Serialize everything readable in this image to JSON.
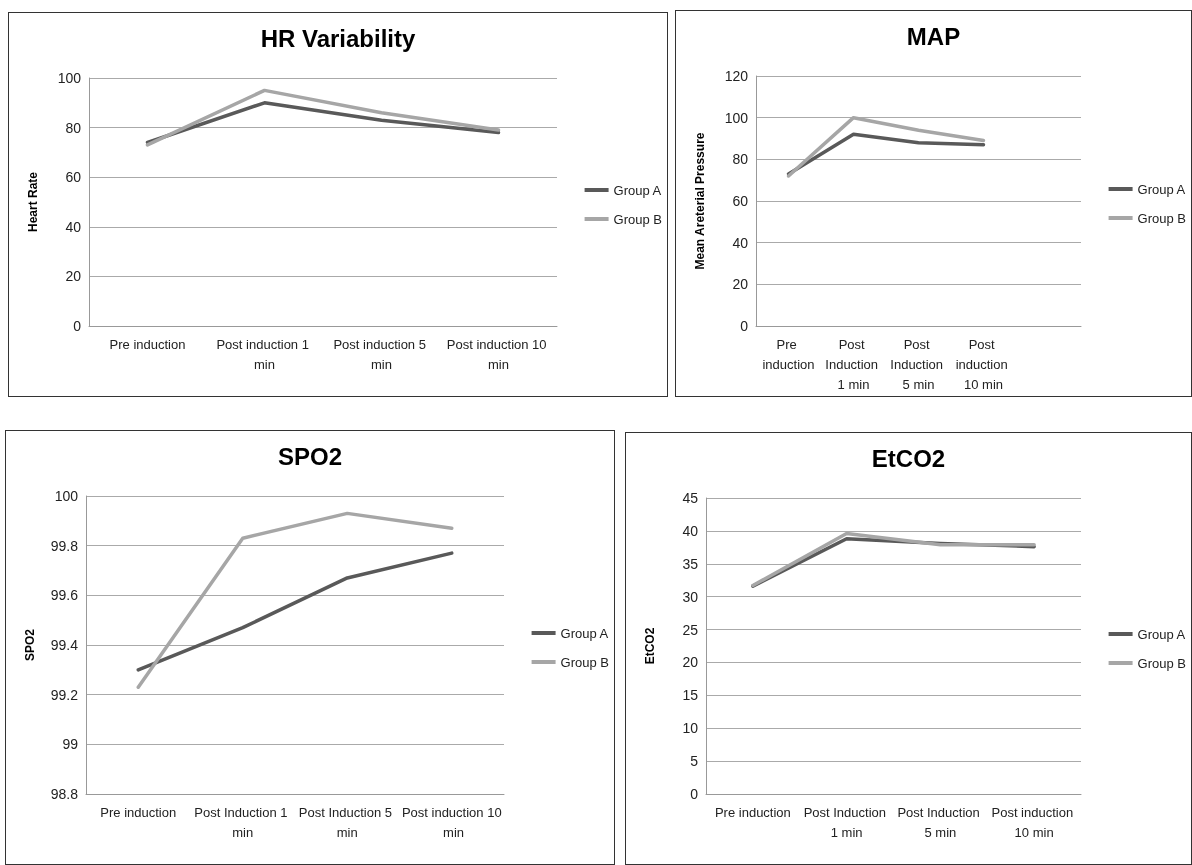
{
  "chart_data": [
    {
      "type": "line",
      "title": "HR Variability",
      "ylabel": "Heart Rate",
      "categories": [
        "Pre induction",
        "Post induction 1 min",
        "Post induction 5 min",
        "Post induction 10 min"
      ],
      "ylim": [
        0,
        100
      ],
      "yticks": [
        0,
        20,
        40,
        60,
        80,
        100
      ],
      "grid": "y",
      "legend": "right",
      "marker": "none",
      "line_style": "solid",
      "series": [
        {
          "name": "Group A",
          "color": "#595959",
          "values": [
            74,
            90,
            83,
            78
          ]
        },
        {
          "name": "Group B",
          "color": "#a6a6a6",
          "values": [
            73,
            95,
            86,
            79
          ]
        }
      ]
    },
    {
      "type": "line",
      "title": "MAP",
      "ylabel": "Mean Areterial Pressure",
      "categories": [
        "Pre induction",
        "Post Induction 1 min",
        "Post Induction 5 min",
        "Post induction 10 min",
        null
      ],
      "ylim": [
        0,
        120
      ],
      "yticks": [
        0,
        20,
        40,
        60,
        80,
        100,
        120
      ],
      "grid": "y",
      "legend": "right",
      "marker": "none",
      "line_style": "solid",
      "series": [
        {
          "name": "Group A",
          "color": "#595959",
          "values": [
            73,
            92,
            88,
            87,
            null
          ]
        },
        {
          "name": "Group B",
          "color": "#a6a6a6",
          "values": [
            72,
            100,
            94,
            89,
            null
          ]
        }
      ]
    },
    {
      "type": "line",
      "title": "SPO2",
      "ylabel": "SPO2",
      "categories": [
        "Pre induction",
        "Post Induction 1 min",
        "Post Induction 5 min",
        "Post induction 10 min"
      ],
      "ylim": [
        98.8,
        100
      ],
      "yticks": [
        98.8,
        99,
        99.2,
        99.4,
        99.6,
        99.8,
        100
      ],
      "grid": "y",
      "legend": "right",
      "marker": "none",
      "line_style": "solid",
      "series": [
        {
          "name": "Group A",
          "color": "#595959",
          "values": [
            99.3,
            99.47,
            99.67,
            99.77
          ]
        },
        {
          "name": "Group B",
          "color": "#a6a6a6",
          "values": [
            99.23,
            99.83,
            99.93,
            99.87
          ]
        }
      ]
    },
    {
      "type": "line",
      "title": "EtCO2",
      "ylabel": "EtCO2",
      "categories": [
        "Pre induction",
        "Post Induction 1 min",
        "Post Induction 5 min",
        "Post induction 10 min"
      ],
      "ylim": [
        0,
        45
      ],
      "yticks": [
        0,
        5,
        10,
        15,
        20,
        25,
        30,
        35,
        40,
        45
      ],
      "grid": "y",
      "legend": "right",
      "marker": "none",
      "line_style": "solid",
      "series": [
        {
          "name": "Group A",
          "color": "#595959",
          "values": [
            31.6,
            38.8,
            38.1,
            37.6
          ]
        },
        {
          "name": "Group B",
          "color": "#a6a6a6",
          "values": [
            31.7,
            39.6,
            37.9,
            37.9
          ]
        }
      ]
    }
  ]
}
